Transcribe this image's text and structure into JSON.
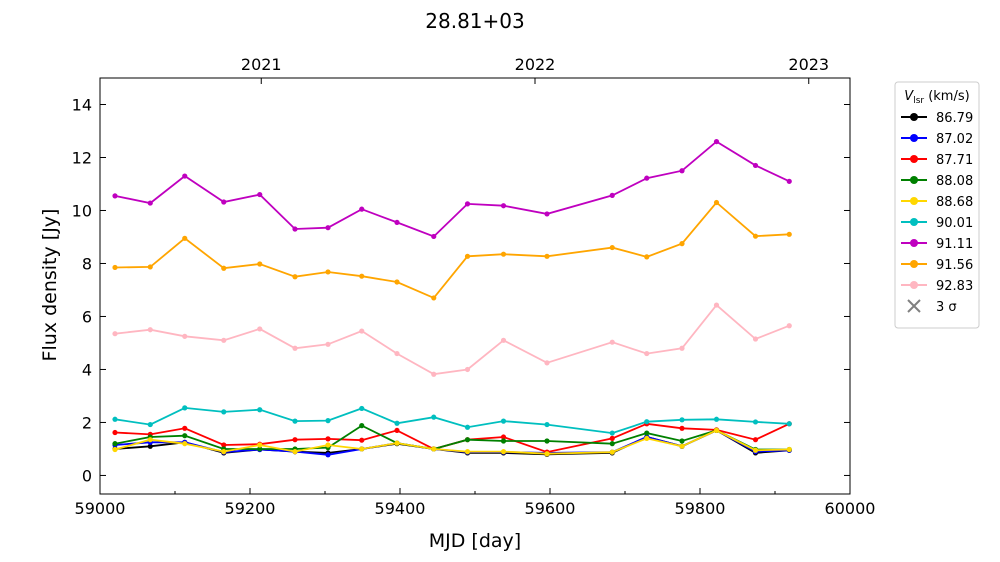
{
  "chart_data": {
    "type": "line",
    "title": "28.81+03",
    "xlabel": "MJD [day]",
    "ylabel": "Flux density [Jy]",
    "xlim": [
      59000,
      60000
    ],
    "ylim": [
      -0.7,
      15
    ],
    "xticks": [
      59000,
      59200,
      59400,
      59600,
      59800,
      60000
    ],
    "xtick_labels": [
      "59000",
      "59200",
      "59400",
      "59600",
      "59800",
      "60000"
    ],
    "yticks": [
      0,
      2,
      4,
      6,
      8,
      10,
      12,
      14
    ],
    "ytick_labels": [
      "0",
      "2",
      "4",
      "6",
      "8",
      "10",
      "12",
      "14"
    ],
    "top_axis": {
      "ticks": [
        59215,
        59580,
        59945
      ],
      "labels": [
        "2021",
        "2022",
        "2023"
      ]
    },
    "grid": false,
    "legend": {
      "placement": "outside-right",
      "title": "V",
      "title_sub": "lsr",
      "title_suffix": " (km/s)",
      "upper_limit_label": "3 σ",
      "upper_limit_color": "#808080"
    },
    "x": [
      59020,
      59067,
      59113,
      59165,
      59213,
      59260,
      59304,
      59349,
      59396,
      59445,
      59490,
      59538,
      59596,
      59683,
      59729,
      59776,
      59822,
      59874,
      59919
    ],
    "series": [
      {
        "name": "86.79",
        "color": "#000000",
        "values": [
          1.0,
          1.1,
          1.25,
          0.85,
          0.98,
          0.9,
          0.85,
          1.0,
          1.2,
          1.0,
          0.85,
          0.85,
          0.8,
          0.85,
          1.45,
          1.1,
          1.7,
          0.85,
          0.95
        ]
      },
      {
        "name": "87.02",
        "color": "#0000ff",
        "values": [
          1.15,
          1.25,
          1.25,
          0.88,
          0.98,
          0.9,
          0.78,
          1.0,
          1.22,
          1.0,
          0.88,
          0.88,
          0.85,
          0.88,
          1.45,
          1.1,
          1.7,
          0.9,
          0.95
        ]
      },
      {
        "name": "87.71",
        "color": "#ff0000",
        "values": [
          1.62,
          1.55,
          1.78,
          1.15,
          1.18,
          1.35,
          1.38,
          1.33,
          1.7,
          1.0,
          1.35,
          1.45,
          0.88,
          1.4,
          1.95,
          1.78,
          1.72,
          1.35,
          1.95
        ]
      },
      {
        "name": "88.08",
        "color": "#008000",
        "values": [
          1.2,
          1.45,
          1.5,
          1.0,
          1.0,
          1.0,
          1.05,
          1.88,
          1.22,
          1.0,
          1.35,
          1.3,
          1.3,
          1.2,
          1.6,
          1.3,
          1.7,
          0.98,
          0.98
        ]
      },
      {
        "name": "88.68",
        "color": "#ffd700",
        "values": [
          0.98,
          1.35,
          1.2,
          0.9,
          1.15,
          0.9,
          1.15,
          1.0,
          1.22,
          1.0,
          0.9,
          0.9,
          0.82,
          0.88,
          1.4,
          1.1,
          1.7,
          0.95,
          0.98
        ]
      },
      {
        "name": "90.01",
        "color": "#00bfbf",
        "values": [
          2.12,
          1.92,
          2.55,
          2.4,
          2.48,
          2.05,
          2.07,
          2.53,
          1.97,
          2.2,
          1.82,
          2.05,
          1.92,
          1.6,
          2.03,
          2.1,
          2.12,
          2.02,
          1.95
        ]
      },
      {
        "name": "91.11",
        "color": "#bf00bf",
        "values": [
          10.55,
          10.28,
          11.3,
          10.32,
          10.6,
          9.3,
          9.35,
          10.05,
          9.55,
          9.02,
          10.25,
          10.18,
          9.87,
          10.57,
          11.22,
          11.5,
          12.6,
          11.7,
          11.1
        ]
      },
      {
        "name": "91.56",
        "color": "#ffa500",
        "values": [
          7.85,
          7.87,
          8.95,
          7.82,
          7.98,
          7.5,
          7.68,
          7.52,
          7.3,
          6.7,
          8.27,
          8.35,
          8.27,
          8.6,
          8.25,
          8.75,
          10.3,
          9.03,
          9.1
        ]
      },
      {
        "name": "92.83",
        "color": "#ffb6c1",
        "values": [
          5.35,
          5.5,
          5.25,
          5.1,
          5.53,
          4.8,
          4.95,
          5.45,
          4.6,
          3.82,
          4.0,
          5.1,
          4.25,
          5.03,
          4.6,
          4.8,
          6.43,
          5.15,
          5.65
        ]
      }
    ]
  }
}
